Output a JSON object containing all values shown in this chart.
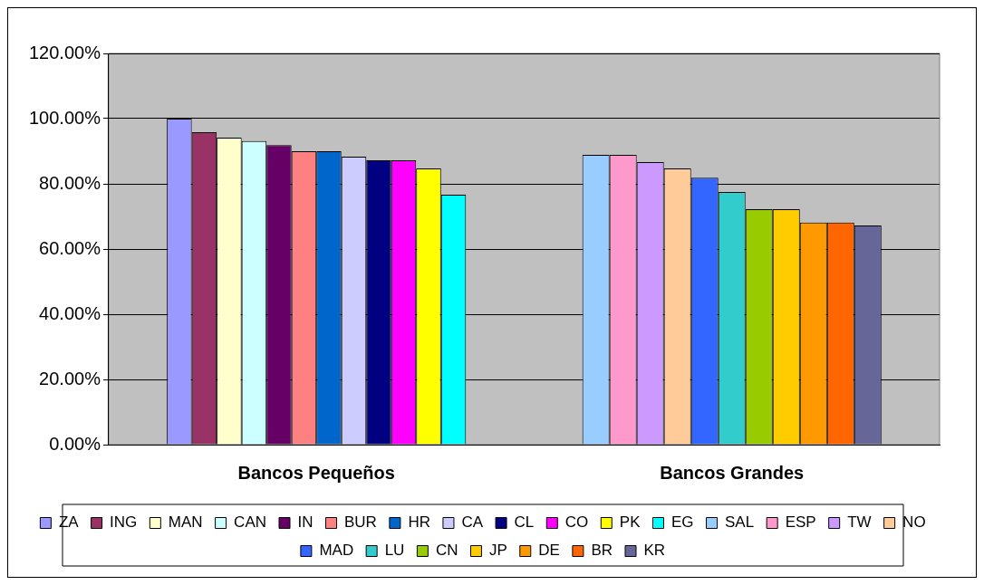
{
  "chart_data": {
    "type": "bar",
    "categories": [
      "Bancos Pequeños",
      "Bancos Grandes"
    ],
    "series": [
      {
        "name": "ZA",
        "color": "#9999ff",
        "values": [
          100,
          null
        ]
      },
      {
        "name": "ING",
        "color": "#993366",
        "values": [
          95.8,
          null
        ]
      },
      {
        "name": "MAN",
        "color": "#ffffcc",
        "values": [
          94.2,
          null
        ]
      },
      {
        "name": "CAN",
        "color": "#ccffff",
        "values": [
          93.1,
          null
        ]
      },
      {
        "name": "IN",
        "color": "#660066",
        "values": [
          91.9,
          null
        ]
      },
      {
        "name": "BUR",
        "color": "#ff8080",
        "values": [
          90,
          null
        ]
      },
      {
        "name": "HR",
        "color": "#0066cc",
        "values": [
          90,
          null
        ]
      },
      {
        "name": "CA",
        "color": "#ccccff",
        "values": [
          88.3,
          null
        ]
      },
      {
        "name": "CL",
        "color": "#000080",
        "values": [
          87.2,
          null
        ]
      },
      {
        "name": "CO",
        "color": "#ff00ff",
        "values": [
          87.2,
          null
        ]
      },
      {
        "name": "PK",
        "color": "#ffff00",
        "values": [
          84.7,
          null
        ]
      },
      {
        "name": "EG",
        "color": "#00ffff",
        "values": [
          76.7,
          null
        ]
      },
      {
        "name": "SAL",
        "color": "#99ccff",
        "values": [
          null,
          88.9
        ]
      },
      {
        "name": "ESP",
        "color": "#ff99cc",
        "values": [
          null,
          88.9
        ]
      },
      {
        "name": "TW",
        "color": "#cc99ff",
        "values": [
          null,
          86.7
        ]
      },
      {
        "name": "NO",
        "color": "#ffcc99",
        "values": [
          null,
          84.7
        ]
      },
      {
        "name": "MAD",
        "color": "#3366ff",
        "values": [
          null,
          81.9
        ]
      },
      {
        "name": "LU",
        "color": "#33cccc",
        "values": [
          null,
          77.5
        ]
      },
      {
        "name": "CN",
        "color": "#99cc00",
        "values": [
          null,
          72.2
        ]
      },
      {
        "name": "JP",
        "color": "#ffcc00",
        "values": [
          null,
          72.2
        ]
      },
      {
        "name": "DE",
        "color": "#ff9900",
        "values": [
          null,
          68.1
        ]
      },
      {
        "name": "BR",
        "color": "#ff6600",
        "values": [
          null,
          68.1
        ]
      },
      {
        "name": "KR",
        "color": "#666699",
        "values": [
          null,
          67.2
        ]
      }
    ],
    "ylim": [
      0,
      120
    ],
    "yticks": [
      {
        "value": 0,
        "label": "0.00%"
      },
      {
        "value": 20,
        "label": "20.00%"
      },
      {
        "value": 40,
        "label": "40.00%"
      },
      {
        "value": 60,
        "label": "60.00%"
      },
      {
        "value": 80,
        "label": "80.00%"
      },
      {
        "value": 100,
        "label": "100.00%"
      },
      {
        "value": 120,
        "label": "120.00%"
      }
    ],
    "grid": "y",
    "legend": "bottom"
  }
}
